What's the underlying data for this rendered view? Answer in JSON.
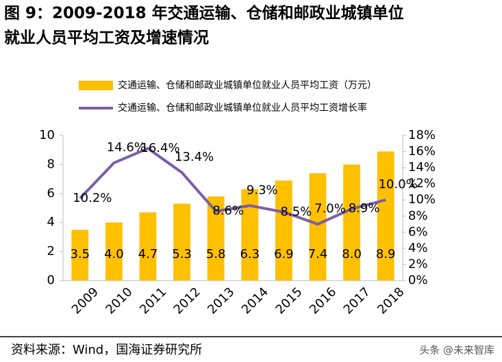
{
  "chart_data": {
    "type": "bar-line",
    "title": [
      "图 9：2009-2018 年交通运输、仓储和邮政业城镇单位",
      "就业人员平均工资及增速情况"
    ],
    "categories": [
      "2009",
      "2010",
      "2011",
      "2012",
      "2013",
      "2014",
      "2015",
      "2016",
      "2017",
      "2018"
    ],
    "series": [
      {
        "name": "交通运输、仓储和邮政业城镇单位就业人员平均工资（万元）",
        "type": "bar",
        "color": "#ffc000",
        "values": [
          3.5,
          4.0,
          4.7,
          5.3,
          5.8,
          6.3,
          6.9,
          7.4,
          8.0,
          8.9
        ],
        "value_labels": [
          "3.5",
          "4.0",
          "4.7",
          "5.3",
          "5.8",
          "6.3",
          "6.9",
          "7.4",
          "8.0",
          "8.9"
        ]
      },
      {
        "name": "交通运输、仓储和邮政业城镇单位就业人员平均工资增长率",
        "type": "line",
        "axis": "y2",
        "color": "#7b5ea7",
        "values": [
          10.2,
          14.6,
          16.4,
          13.4,
          8.6,
          9.3,
          8.5,
          7.0,
          8.9,
          10.0
        ],
        "value_labels": [
          "10.2%",
          "14.6%",
          "16.4%",
          "13.4%",
          "8.6%",
          "9.3%",
          "8.5%",
          "7.0%",
          "8.9%",
          "10.0%"
        ]
      }
    ],
    "ylim": [
      0,
      10
    ],
    "yticks": [
      0,
      2,
      4,
      6,
      8,
      10
    ],
    "y2lim": [
      0,
      18
    ],
    "y2ticks": [
      {
        "value": 0,
        "label": "0%"
      },
      {
        "value": 2,
        "label": "2%"
      },
      {
        "value": 4,
        "label": "4%"
      },
      {
        "value": 6,
        "label": "6%"
      },
      {
        "value": 8,
        "label": "8%"
      },
      {
        "value": 10,
        "label": "10%"
      },
      {
        "value": 12,
        "label": "12%"
      },
      {
        "value": 14,
        "label": "14%"
      },
      {
        "value": 16,
        "label": "16%"
      },
      {
        "value": 18,
        "label": "18%"
      }
    ],
    "source": "资料来源：Wind，国海证券研究所",
    "watermark": "头条 @未来智库"
  }
}
